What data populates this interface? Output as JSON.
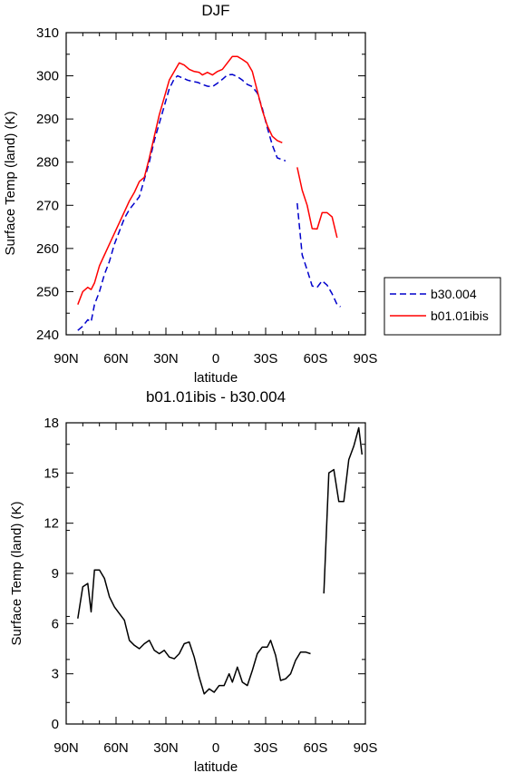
{
  "chart_data": [
    {
      "type": "line",
      "title": "DJF",
      "xlabel": "latitude",
      "ylabel": "Surface Temp (land) (K)",
      "xlim": [
        90,
        -90
      ],
      "ylim": [
        240,
        310
      ],
      "x_ticks": [
        {
          "value": 90,
          "label": "90N"
        },
        {
          "value": 60,
          "label": "60N"
        },
        {
          "value": 30,
          "label": "30N"
        },
        {
          "value": 0,
          "label": "0"
        },
        {
          "value": -30,
          "label": "30S"
        },
        {
          "value": -60,
          "label": "60S"
        },
        {
          "value": -90,
          "label": "90S"
        }
      ],
      "y_ticks": [
        {
          "value": 310,
          "label": "310"
        },
        {
          "value": 300,
          "label": "300"
        },
        {
          "value": 290,
          "label": "290"
        },
        {
          "value": 280,
          "label": "280"
        },
        {
          "value": 270,
          "label": "270"
        },
        {
          "value": 260,
          "label": "260"
        },
        {
          "value": 250,
          "label": "250"
        },
        {
          "value": 240,
          "label": "240"
        }
      ],
      "legend": "right-outside",
      "series": [
        {
          "name": "b30.004",
          "color": "#0000cc",
          "dash": "dashed",
          "segments": [
            [
              [
                83,
                241
              ],
              [
                80,
                242
              ],
              [
                77,
                243.5
              ],
              [
                75,
                243
              ],
              [
                73,
                247
              ],
              [
                70,
                250
              ],
              [
                67,
                254
              ],
              [
                64,
                257
              ],
              [
                61,
                261
              ],
              [
                58,
                264
              ],
              [
                55,
                267
              ],
              [
                52,
                269
              ],
              [
                49,
                270.5
              ],
              [
                46,
                272
              ],
              [
                43,
                276
              ],
              [
                40,
                280
              ],
              [
                37,
                285
              ],
              [
                34,
                289
              ],
              [
                31,
                293
              ],
              [
                28,
                297
              ],
              [
                25,
                299.3
              ],
              [
                23,
                300
              ],
              [
                20,
                299.5
              ],
              [
                17,
                299
              ],
              [
                14,
                298.7
              ],
              [
                11,
                298.5
              ],
              [
                8,
                298
              ],
              [
                5,
                297.6
              ],
              [
                2,
                297.5
              ],
              [
                -1,
                298.3
              ],
              [
                -4,
                299.2
              ],
              [
                -7,
                300.2
              ],
              [
                -10,
                300.3
              ],
              [
                -13,
                299.8
              ],
              [
                -16,
                299
              ],
              [
                -19,
                298
              ],
              [
                -22,
                297.5
              ],
              [
                -25,
                296
              ],
              [
                -28,
                292.5
              ],
              [
                -31,
                288
              ],
              [
                -34,
                284
              ],
              [
                -37,
                281
              ],
              [
                -42,
                280.3
              ]
            ],
            [
              [
                -49,
                270.5
              ],
              [
                -52,
                258.5
              ],
              [
                -55,
                255
              ],
              [
                -58,
                251.3
              ],
              [
                -61,
                251
              ],
              [
                -64,
                252.5
              ],
              [
                -67,
                251.5
              ],
              [
                -70,
                249.5
              ],
              [
                -73,
                247
              ],
              [
                -75,
                246.5
              ]
            ]
          ]
        },
        {
          "name": "b01.01ibis",
          "color": "#ff0000",
          "dash": "solid",
          "segments": [
            [
              [
                83,
                247
              ],
              [
                80,
                250
              ],
              [
                77,
                251
              ],
              [
                75,
                250.5
              ],
              [
                73,
                252
              ],
              [
                70,
                256
              ],
              [
                67,
                258.5
              ],
              [
                64,
                261
              ],
              [
                61,
                263.5
              ],
              [
                58,
                266
              ],
              [
                55,
                268.5
              ],
              [
                52,
                271
              ],
              [
                49,
                273
              ],
              [
                46,
                275.5
              ],
              [
                43,
                276.5
              ],
              [
                40,
                281
              ],
              [
                37,
                286
              ],
              [
                34,
                291
              ],
              [
                31,
                295
              ],
              [
                28,
                299
              ],
              [
                25,
                301
              ],
              [
                22,
                303
              ],
              [
                19,
                302.5
              ],
              [
                16,
                301.5
              ],
              [
                13,
                301
              ],
              [
                10,
                300.8
              ],
              [
                8,
                300.2
              ],
              [
                5,
                300.8
              ],
              [
                2,
                300.2
              ],
              [
                -1,
                301
              ],
              [
                -4,
                301.5
              ],
              [
                -7,
                303
              ],
              [
                -10,
                304.5
              ],
              [
                -13,
                304.5
              ],
              [
                -16,
                303.8
              ],
              [
                -19,
                303
              ],
              [
                -22,
                301
              ],
              [
                -25,
                296.5
              ],
              [
                -28,
                292
              ],
              [
                -31,
                288.5
              ],
              [
                -34,
                286
              ],
              [
                -37,
                285
              ],
              [
                -40,
                284.5
              ]
            ],
            [
              [
                -49,
                278.8
              ],
              [
                -52,
                273.5
              ],
              [
                -55,
                270
              ],
              [
                -58,
                264.6
              ],
              [
                -61,
                264.5
              ],
              [
                -64,
                268.3
              ],
              [
                -67,
                268.3
              ],
              [
                -70,
                267.3
              ],
              [
                -73,
                262.5
              ]
            ]
          ]
        }
      ]
    },
    {
      "type": "line",
      "title": "b01.01ibis - b30.004",
      "xlabel": "latitude",
      "ylabel": "Surface Temp (land) (K)",
      "xlim": [
        90,
        -90
      ],
      "ylim": [
        0,
        18
      ],
      "x_ticks": [
        {
          "value": 90,
          "label": "90N"
        },
        {
          "value": 60,
          "label": "60N"
        },
        {
          "value": 30,
          "label": "30N"
        },
        {
          "value": 0,
          "label": "0"
        },
        {
          "value": -30,
          "label": "30S"
        },
        {
          "value": -60,
          "label": "60S"
        },
        {
          "value": -90,
          "label": "90S"
        }
      ],
      "y_ticks": [
        {
          "value": 18,
          "label": "18"
        },
        {
          "value": 15,
          "label": "15"
        },
        {
          "value": 12,
          "label": "12"
        },
        {
          "value": 9,
          "label": "9"
        },
        {
          "value": 6,
          "label": "6"
        },
        {
          "value": 3,
          "label": "3"
        },
        {
          "value": 0,
          "label": "0"
        }
      ],
      "series": [
        {
          "color": "#000000",
          "dash": "solid",
          "segments": [
            [
              [
                83,
                6.3
              ],
              [
                80,
                8.2
              ],
              [
                77,
                8.4
              ],
              [
                75,
                6.7
              ],
              [
                73,
                9.2
              ],
              [
                70,
                9.2
              ],
              [
                67,
                8.7
              ],
              [
                64,
                7.6
              ],
              [
                61,
                7.0
              ],
              [
                58,
                6.6
              ],
              [
                55,
                6.2
              ],
              [
                52,
                5.0
              ],
              [
                49,
                4.7
              ],
              [
                46,
                4.5
              ],
              [
                43,
                4.8
              ],
              [
                40,
                5.0
              ],
              [
                37,
                4.4
              ],
              [
                34,
                4.2
              ],
              [
                31,
                4.4
              ],
              [
                28,
                4.0
              ],
              [
                25,
                3.9
              ],
              [
                22,
                4.2
              ],
              [
                19,
                4.8
              ],
              [
                16,
                4.9
              ],
              [
                13,
                4.0
              ],
              [
                10,
                2.8
              ],
              [
                7,
                1.8
              ],
              [
                4,
                2.1
              ],
              [
                1,
                1.9
              ],
              [
                -2,
                2.3
              ],
              [
                -5,
                2.3
              ],
              [
                -8,
                3.0
              ],
              [
                -10,
                2.5
              ],
              [
                -13,
                3.4
              ],
              [
                -16,
                2.5
              ],
              [
                -19,
                2.3
              ],
              [
                -22,
                3.2
              ],
              [
                -25,
                4.2
              ],
              [
                -28,
                4.6
              ],
              [
                -31,
                4.6
              ],
              [
                -33,
                5.0
              ],
              [
                -36,
                4.1
              ],
              [
                -39,
                2.6
              ],
              [
                -42,
                2.7
              ],
              [
                -45,
                3.0
              ],
              [
                -48,
                3.8
              ],
              [
                -51,
                4.3
              ],
              [
                -54,
                4.3
              ],
              [
                -57,
                4.2
              ]
            ],
            [
              [
                -65,
                7.8
              ],
              [
                -68,
                15.0
              ],
              [
                -71,
                15.2
              ],
              [
                -74,
                13.3
              ],
              [
                -77,
                13.3
              ],
              [
                -80,
                15.8
              ],
              [
                -83,
                16.6
              ],
              [
                -86,
                17.7
              ],
              [
                -88,
                16.1
              ]
            ]
          ]
        }
      ]
    }
  ]
}
